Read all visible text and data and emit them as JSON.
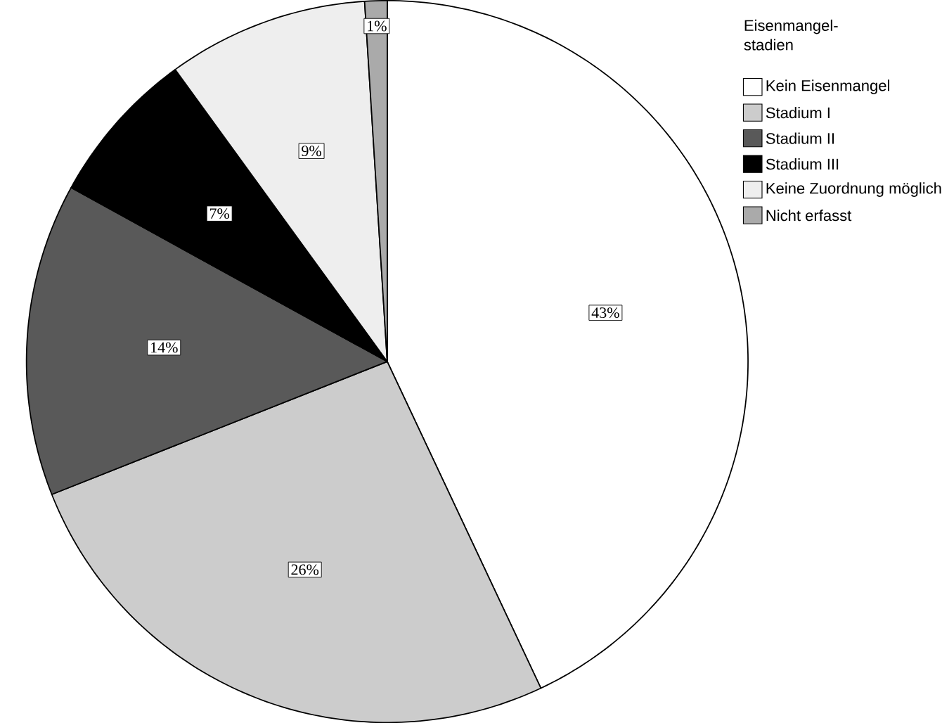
{
  "chart_data": {
    "type": "pie",
    "legend_title": "Eisenmangel-stadien",
    "legend": "top right",
    "categories": [
      "Kein Eisenmangel",
      "Stadium I",
      "Stadium II",
      "Stadium III",
      "Keine Zuordnung möglich",
      "Nicht erfasst"
    ],
    "values": [
      43,
      26,
      14,
      7,
      9,
      1
    ],
    "value_labels": [
      "43%",
      "26%",
      "14%",
      "7%",
      "9%",
      "1%"
    ],
    "colors": [
      "#ffffff",
      "#cccccc",
      "#595959",
      "#000000",
      "#eeeeee",
      "#aaaaaa"
    ]
  }
}
